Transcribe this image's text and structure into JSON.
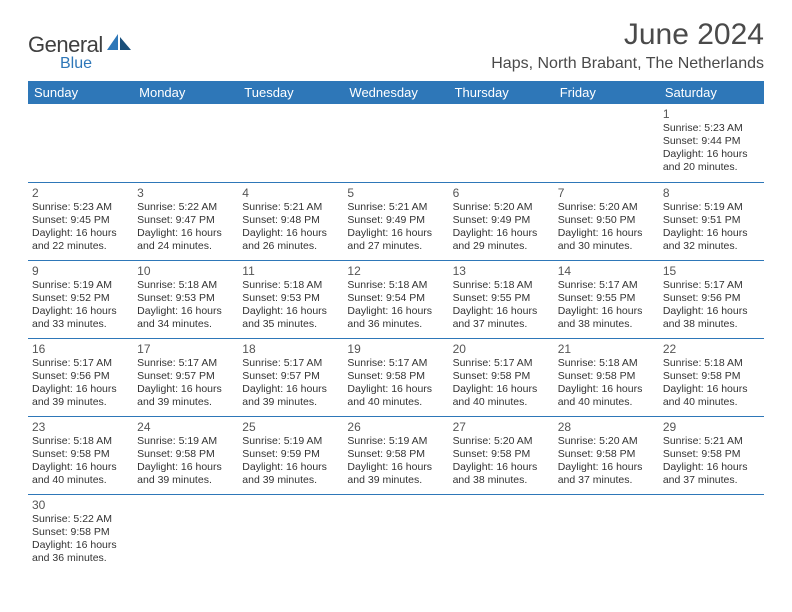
{
  "logo": {
    "general": "General",
    "blue": "Blue"
  },
  "header": {
    "month": "June 2024",
    "location": "Haps, North Brabant, The Netherlands"
  },
  "colors": {
    "header_bg": "#2e77b8",
    "header_fg": "#ffffff",
    "rule": "#2e77b8",
    "text": "#333333"
  },
  "day_headers": [
    "Sunday",
    "Monday",
    "Tuesday",
    "Wednesday",
    "Thursday",
    "Friday",
    "Saturday"
  ],
  "weeks": [
    [
      null,
      null,
      null,
      null,
      null,
      null,
      {
        "d": "1",
        "sr": "5:23 AM",
        "ss": "9:44 PM",
        "dl1": "16 hours",
        "dl2": "and 20 minutes."
      }
    ],
    [
      {
        "d": "2",
        "sr": "5:23 AM",
        "ss": "9:45 PM",
        "dl1": "16 hours",
        "dl2": "and 22 minutes."
      },
      {
        "d": "3",
        "sr": "5:22 AM",
        "ss": "9:47 PM",
        "dl1": "16 hours",
        "dl2": "and 24 minutes."
      },
      {
        "d": "4",
        "sr": "5:21 AM",
        "ss": "9:48 PM",
        "dl1": "16 hours",
        "dl2": "and 26 minutes."
      },
      {
        "d": "5",
        "sr": "5:21 AM",
        "ss": "9:49 PM",
        "dl1": "16 hours",
        "dl2": "and 27 minutes."
      },
      {
        "d": "6",
        "sr": "5:20 AM",
        "ss": "9:49 PM",
        "dl1": "16 hours",
        "dl2": "and 29 minutes."
      },
      {
        "d": "7",
        "sr": "5:20 AM",
        "ss": "9:50 PM",
        "dl1": "16 hours",
        "dl2": "and 30 minutes."
      },
      {
        "d": "8",
        "sr": "5:19 AM",
        "ss": "9:51 PM",
        "dl1": "16 hours",
        "dl2": "and 32 minutes."
      }
    ],
    [
      {
        "d": "9",
        "sr": "5:19 AM",
        "ss": "9:52 PM",
        "dl1": "16 hours",
        "dl2": "and 33 minutes."
      },
      {
        "d": "10",
        "sr": "5:18 AM",
        "ss": "9:53 PM",
        "dl1": "16 hours",
        "dl2": "and 34 minutes."
      },
      {
        "d": "11",
        "sr": "5:18 AM",
        "ss": "9:53 PM",
        "dl1": "16 hours",
        "dl2": "and 35 minutes."
      },
      {
        "d": "12",
        "sr": "5:18 AM",
        "ss": "9:54 PM",
        "dl1": "16 hours",
        "dl2": "and 36 minutes."
      },
      {
        "d": "13",
        "sr": "5:18 AM",
        "ss": "9:55 PM",
        "dl1": "16 hours",
        "dl2": "and 37 minutes."
      },
      {
        "d": "14",
        "sr": "5:17 AM",
        "ss": "9:55 PM",
        "dl1": "16 hours",
        "dl2": "and 38 minutes."
      },
      {
        "d": "15",
        "sr": "5:17 AM",
        "ss": "9:56 PM",
        "dl1": "16 hours",
        "dl2": "and 38 minutes."
      }
    ],
    [
      {
        "d": "16",
        "sr": "5:17 AM",
        "ss": "9:56 PM",
        "dl1": "16 hours",
        "dl2": "and 39 minutes."
      },
      {
        "d": "17",
        "sr": "5:17 AM",
        "ss": "9:57 PM",
        "dl1": "16 hours",
        "dl2": "and 39 minutes."
      },
      {
        "d": "18",
        "sr": "5:17 AM",
        "ss": "9:57 PM",
        "dl1": "16 hours",
        "dl2": "and 39 minutes."
      },
      {
        "d": "19",
        "sr": "5:17 AM",
        "ss": "9:58 PM",
        "dl1": "16 hours",
        "dl2": "and 40 minutes."
      },
      {
        "d": "20",
        "sr": "5:17 AM",
        "ss": "9:58 PM",
        "dl1": "16 hours",
        "dl2": "and 40 minutes."
      },
      {
        "d": "21",
        "sr": "5:18 AM",
        "ss": "9:58 PM",
        "dl1": "16 hours",
        "dl2": "and 40 minutes."
      },
      {
        "d": "22",
        "sr": "5:18 AM",
        "ss": "9:58 PM",
        "dl1": "16 hours",
        "dl2": "and 40 minutes."
      }
    ],
    [
      {
        "d": "23",
        "sr": "5:18 AM",
        "ss": "9:58 PM",
        "dl1": "16 hours",
        "dl2": "and 40 minutes."
      },
      {
        "d": "24",
        "sr": "5:19 AM",
        "ss": "9:58 PM",
        "dl1": "16 hours",
        "dl2": "and 39 minutes."
      },
      {
        "d": "25",
        "sr": "5:19 AM",
        "ss": "9:59 PM",
        "dl1": "16 hours",
        "dl2": "and 39 minutes."
      },
      {
        "d": "26",
        "sr": "5:19 AM",
        "ss": "9:58 PM",
        "dl1": "16 hours",
        "dl2": "and 39 minutes."
      },
      {
        "d": "27",
        "sr": "5:20 AM",
        "ss": "9:58 PM",
        "dl1": "16 hours",
        "dl2": "and 38 minutes."
      },
      {
        "d": "28",
        "sr": "5:20 AM",
        "ss": "9:58 PM",
        "dl1": "16 hours",
        "dl2": "and 37 minutes."
      },
      {
        "d": "29",
        "sr": "5:21 AM",
        "ss": "9:58 PM",
        "dl1": "16 hours",
        "dl2": "and 37 minutes."
      }
    ],
    [
      {
        "d": "30",
        "sr": "5:22 AM",
        "ss": "9:58 PM",
        "dl1": "16 hours",
        "dl2": "and 36 minutes."
      },
      null,
      null,
      null,
      null,
      null,
      null
    ]
  ],
  "labels": {
    "sunrise": "Sunrise:",
    "sunset": "Sunset:",
    "daylight": "Daylight:"
  }
}
